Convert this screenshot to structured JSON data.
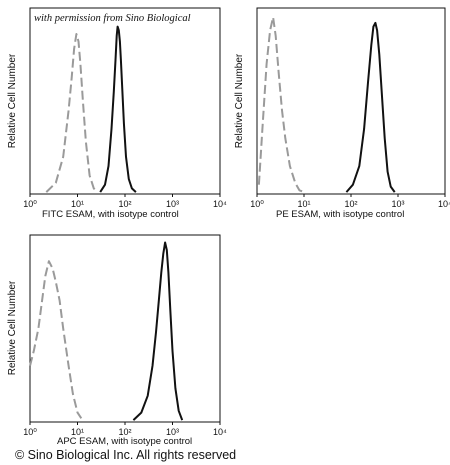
{
  "watermark": "with permission from Sino Biological",
  "footer": "© Sino Biological Inc. All rights reserved",
  "colors": {
    "sample": "#111111",
    "isotype": "#9a9a9a",
    "axis": "#111111"
  },
  "chart_data": [
    {
      "type": "line",
      "xscale": "log",
      "xlim": [
        1,
        10000
      ],
      "xticks": [
        "10⁰",
        "10¹",
        "10²",
        "10³",
        "10⁴"
      ],
      "xlabel": "FITC  ESAM,  with isotype control",
      "ylabel": "Relative Cell Number",
      "series": [
        {
          "role": "isotype control",
          "style": "dashed",
          "x": [
            2.2,
            3.5,
            5,
            6.5,
            7.5,
            8.5,
            9.5,
            10.5,
            11.5,
            13,
            15,
            18,
            22,
            26
          ],
          "y": [
            0.01,
            0.06,
            0.2,
            0.45,
            0.62,
            0.78,
            0.86,
            0.82,
            0.7,
            0.5,
            0.28,
            0.1,
            0.03,
            0.01
          ]
        },
        {
          "role": "ESAM",
          "style": "solid",
          "x": [
            30,
            38,
            45,
            52,
            58,
            63,
            67,
            70,
            74,
            78,
            82,
            88,
            95,
            105,
            120,
            140,
            170
          ],
          "y": [
            0.01,
            0.05,
            0.15,
            0.35,
            0.55,
            0.72,
            0.85,
            0.9,
            0.88,
            0.82,
            0.72,
            0.55,
            0.38,
            0.2,
            0.08,
            0.03,
            0.01
          ]
        }
      ]
    },
    {
      "type": "line",
      "xscale": "log",
      "xlim": [
        1,
        10000
      ],
      "xticks": [
        "10⁰",
        "10¹",
        "10²",
        "10³",
        "10⁴"
      ],
      "xlabel": "PE ESAM,  with isotype control",
      "ylabel": "Relative Cell Number",
      "series": [
        {
          "role": "isotype control",
          "style": "dashed",
          "x": [
            1.1,
            1.3,
            1.6,
            1.9,
            2.2,
            2.5,
            2.9,
            3.4,
            4,
            5,
            6.5,
            8,
            10
          ],
          "y": [
            0.05,
            0.35,
            0.7,
            0.88,
            0.95,
            0.85,
            0.65,
            0.45,
            0.3,
            0.15,
            0.06,
            0.02,
            0.01
          ]
        },
        {
          "role": "ESAM",
          "style": "solid",
          "x": [
            80,
            110,
            150,
            190,
            230,
            270,
            300,
            330,
            360,
            400,
            450,
            520,
            600,
            700,
            850
          ],
          "y": [
            0.01,
            0.05,
            0.15,
            0.35,
            0.6,
            0.8,
            0.9,
            0.92,
            0.88,
            0.75,
            0.55,
            0.3,
            0.12,
            0.04,
            0.01
          ]
        }
      ]
    },
    {
      "type": "line",
      "xscale": "log",
      "xlim": [
        1,
        10000
      ],
      "xticks": [
        "10⁰",
        "10¹",
        "10²",
        "10³",
        "10⁴"
      ],
      "xlabel": "APC ESAM, with isotype control",
      "ylabel": "Relative Cell Number",
      "series": [
        {
          "role": "isotype control",
          "style": "dashed",
          "x": [
            1.0,
            1.2,
            1.5,
            1.8,
            2.1,
            2.5,
            3.0,
            3.5,
            4.2,
            5,
            6.5,
            8,
            10,
            12
          ],
          "y": [
            0.3,
            0.38,
            0.5,
            0.65,
            0.78,
            0.86,
            0.82,
            0.75,
            0.65,
            0.5,
            0.3,
            0.15,
            0.05,
            0.02
          ]
        },
        {
          "role": "ESAM",
          "style": "solid",
          "x": [
            150,
            220,
            300,
            380,
            450,
            520,
            580,
            640,
            700,
            760,
            820,
            900,
            1000,
            1150,
            1350,
            1600
          ],
          "y": [
            0.01,
            0.05,
            0.14,
            0.3,
            0.48,
            0.66,
            0.8,
            0.9,
            0.96,
            0.92,
            0.8,
            0.6,
            0.38,
            0.18,
            0.06,
            0.01
          ]
        }
      ]
    }
  ]
}
